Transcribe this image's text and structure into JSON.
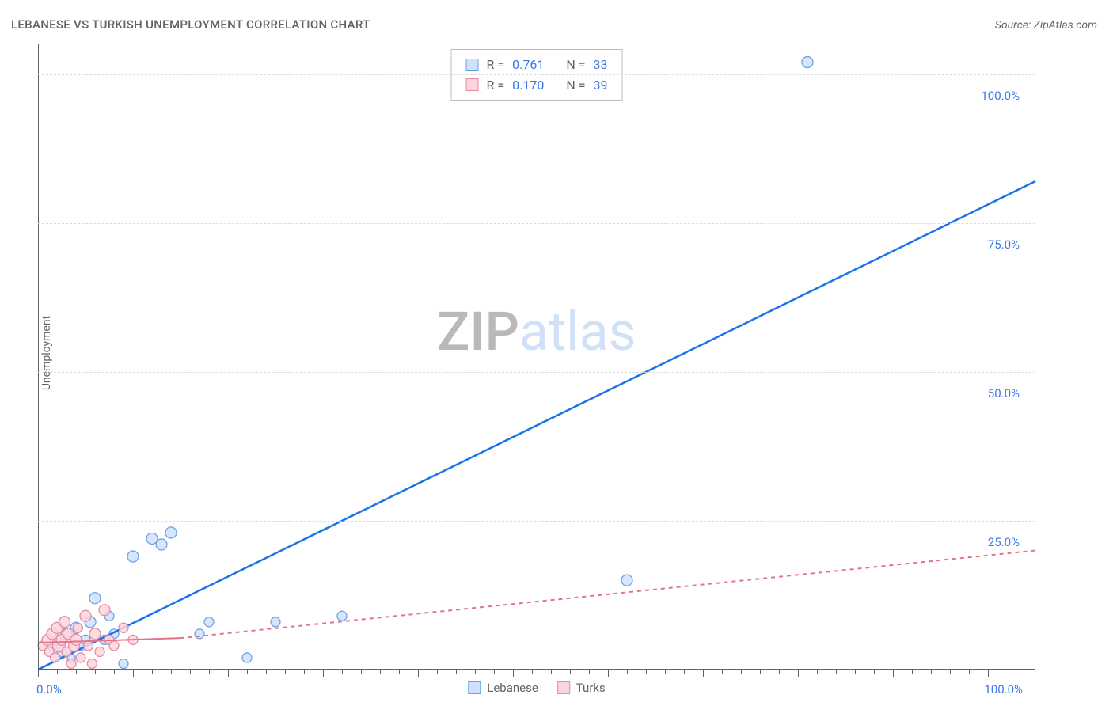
{
  "title": "LEBANESE VS TURKISH UNEMPLOYMENT CORRELATION CHART",
  "source_label": "Source: ZipAtlas.com",
  "y_axis_label": "Unemployment",
  "watermark": {
    "part1": "ZIP",
    "part2": "atlas"
  },
  "chart": {
    "type": "scatter",
    "xlim": [
      0,
      105
    ],
    "ylim": [
      0,
      105
    ],
    "background_color": "#ffffff",
    "grid_color": "#dadce0",
    "axis_color": "#5f6368",
    "grid_y": [
      25,
      50,
      75,
      100
    ],
    "x_ticks_major": [
      0,
      10,
      20,
      30,
      40,
      50,
      60,
      70,
      80,
      90,
      100
    ],
    "x_ticks_minor_step": 2,
    "y_tick_labels": [
      {
        "v": 25,
        "label": "25.0%"
      },
      {
        "v": 50,
        "label": "50.0%"
      },
      {
        "v": 75,
        "label": "75.0%"
      },
      {
        "v": 100,
        "label": "100.0%"
      }
    ],
    "x_min_label": "0.0%",
    "x_max_label": "100.0%",
    "series": [
      {
        "name": "Lebanese",
        "marker_fill": "#cfe2fb",
        "marker_stroke": "#6fa1e8",
        "line_color": "#1a73e8",
        "line_width": 2.5,
        "line_dash": "none",
        "R": "0.761",
        "N": "33",
        "trend": {
          "x1": 0,
          "y1": 0,
          "x2": 105,
          "y2": 82
        },
        "points": [
          {
            "x": 1.5,
            "y": 4,
            "r": 6
          },
          {
            "x": 2,
            "y": 5,
            "r": 6
          },
          {
            "x": 2.5,
            "y": 3,
            "r": 6
          },
          {
            "x": 3,
            "y": 6,
            "r": 7
          },
          {
            "x": 3.5,
            "y": 2,
            "r": 5
          },
          {
            "x": 4,
            "y": 7,
            "r": 7
          },
          {
            "x": 4.5,
            "y": 4,
            "r": 6
          },
          {
            "x": 5,
            "y": 5,
            "r": 6
          },
          {
            "x": 5.5,
            "y": 8,
            "r": 7
          },
          {
            "x": 6,
            "y": 12,
            "r": 7
          },
          {
            "x": 7,
            "y": 5,
            "r": 6
          },
          {
            "x": 7.5,
            "y": 9,
            "r": 6
          },
          {
            "x": 8,
            "y": 6,
            "r": 6
          },
          {
            "x": 9,
            "y": 1,
            "r": 6
          },
          {
            "x": 10,
            "y": 19,
            "r": 7
          },
          {
            "x": 12,
            "y": 22,
            "r": 7
          },
          {
            "x": 13,
            "y": 21,
            "r": 7
          },
          {
            "x": 14,
            "y": 23,
            "r": 7
          },
          {
            "x": 17,
            "y": 6,
            "r": 6
          },
          {
            "x": 18,
            "y": 8,
            "r": 6
          },
          {
            "x": 22,
            "y": 2,
            "r": 6
          },
          {
            "x": 25,
            "y": 8,
            "r": 6
          },
          {
            "x": 32,
            "y": 9,
            "r": 6
          },
          {
            "x": 62,
            "y": 15,
            "r": 7
          },
          {
            "x": 81,
            "y": 102,
            "r": 7
          }
        ]
      },
      {
        "name": "Turks",
        "marker_fill": "#fbd5de",
        "marker_stroke": "#e88aa0",
        "line_color": "#e57387",
        "line_width": 2,
        "line_dash": "5,5",
        "R": "0.170",
        "N": "39",
        "trend_solid": {
          "x1": 0,
          "y1": 4.5,
          "x2": 15,
          "y2": 5.3
        },
        "trend": {
          "x1": 15,
          "y1": 5.3,
          "x2": 105,
          "y2": 20
        },
        "points": [
          {
            "x": 0.5,
            "y": 4,
            "r": 6
          },
          {
            "x": 1,
            "y": 5,
            "r": 7
          },
          {
            "x": 1.2,
            "y": 3,
            "r": 6
          },
          {
            "x": 1.5,
            "y": 6,
            "r": 7
          },
          {
            "x": 1.8,
            "y": 2,
            "r": 6
          },
          {
            "x": 2,
            "y": 7,
            "r": 7
          },
          {
            "x": 2.2,
            "y": 4,
            "r": 8
          },
          {
            "x": 2.5,
            "y": 5,
            "r": 7
          },
          {
            "x": 2.8,
            "y": 8,
            "r": 7
          },
          {
            "x": 3,
            "y": 3,
            "r": 6
          },
          {
            "x": 3.2,
            "y": 6,
            "r": 7
          },
          {
            "x": 3.5,
            "y": 1,
            "r": 6
          },
          {
            "x": 3.8,
            "y": 4,
            "r": 7
          },
          {
            "x": 4,
            "y": 5,
            "r": 7
          },
          {
            "x": 4.2,
            "y": 7,
            "r": 6
          },
          {
            "x": 4.5,
            "y": 2,
            "r": 6
          },
          {
            "x": 5,
            "y": 9,
            "r": 7
          },
          {
            "x": 5.3,
            "y": 4,
            "r": 6
          },
          {
            "x": 5.7,
            "y": 1,
            "r": 6
          },
          {
            "x": 6,
            "y": 6,
            "r": 7
          },
          {
            "x": 6.5,
            "y": 3,
            "r": 6
          },
          {
            "x": 7,
            "y": 10,
            "r": 7
          },
          {
            "x": 7.5,
            "y": 5,
            "r": 6
          },
          {
            "x": 8,
            "y": 4,
            "r": 6
          },
          {
            "x": 9,
            "y": 7,
            "r": 6
          },
          {
            "x": 10,
            "y": 5,
            "r": 6
          }
        ]
      }
    ]
  },
  "legend_stats": {
    "rows": [
      {
        "swatch_fill": "#cfe2fb",
        "swatch_stroke": "#6fa1e8",
        "R": "0.761",
        "N": "33"
      },
      {
        "swatch_fill": "#fbd5de",
        "swatch_stroke": "#e88aa0",
        "R": "0.170",
        "N": "39"
      }
    ],
    "label_R": "R",
    "label_N": "N",
    "eq": "="
  },
  "bottom_legend": {
    "items": [
      {
        "swatch_fill": "#cfe2fb",
        "swatch_stroke": "#6fa1e8",
        "label": "Lebanese"
      },
      {
        "swatch_fill": "#fbd5de",
        "swatch_stroke": "#e88aa0",
        "label": "Turks"
      }
    ]
  }
}
